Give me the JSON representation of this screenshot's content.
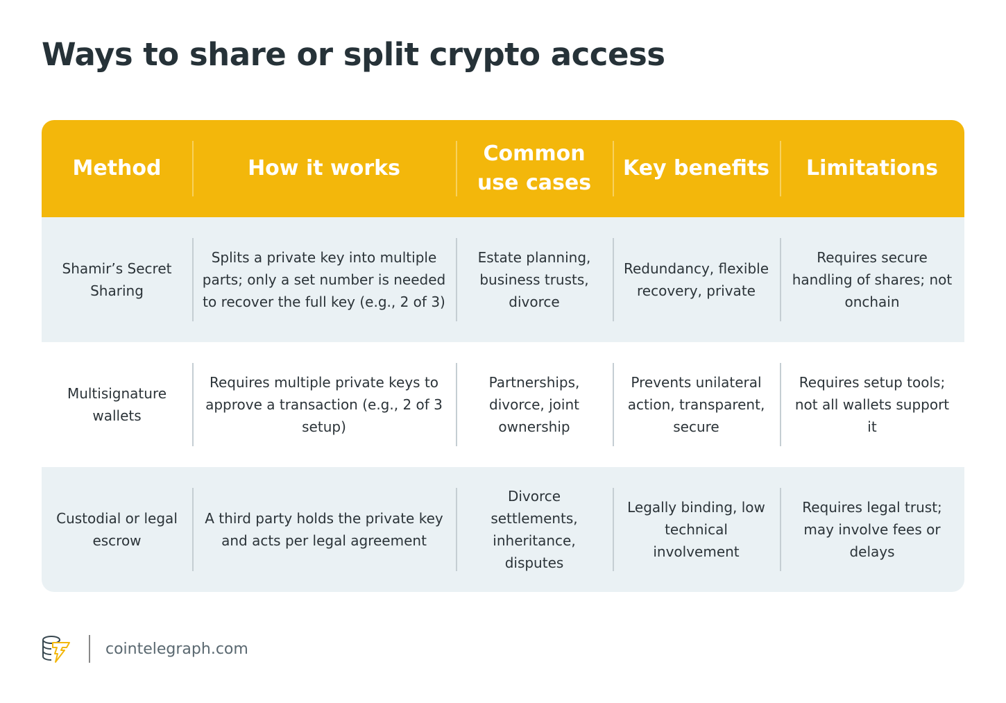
{
  "title": "Ways to share or split crypto access",
  "chart_data": {
    "type": "table",
    "columns": [
      "Method",
      "How it works",
      "Common use cases",
      "Key benefits",
      "Limitations"
    ],
    "rows": [
      [
        "Shamir’s Secret Sharing",
        "Splits a private key into multiple parts; only a set number is needed to recover the full key (e.g., 2 of 3)",
        "Estate planning, business trusts, divorce",
        "Redundancy, flexible recovery, private",
        "Requires secure handling of shares; not onchain"
      ],
      [
        "Multisignature wallets",
        "Requires multiple private keys to approve a transaction (e.g., 2 of 3 setup)",
        "Partnerships, divorce, joint ownership",
        "Prevents unilateral action, transparent, secure",
        "Requires setup tools; not all wallets support it"
      ],
      [
        "Custodial or legal escrow",
        "A third party holds the private key and acts per legal agreement",
        "Divorce settlements, inheritance, disputes",
        "Legally binding, low technical involvement",
        "Requires legal trust; may involve fees or delays"
      ]
    ]
  },
  "colors": {
    "header": "#f3b70b",
    "row_alt": "#eaf1f4"
  },
  "footer": {
    "site": "cointelegraph.com",
    "logo_icon": "cointelegraph-logo-icon"
  }
}
